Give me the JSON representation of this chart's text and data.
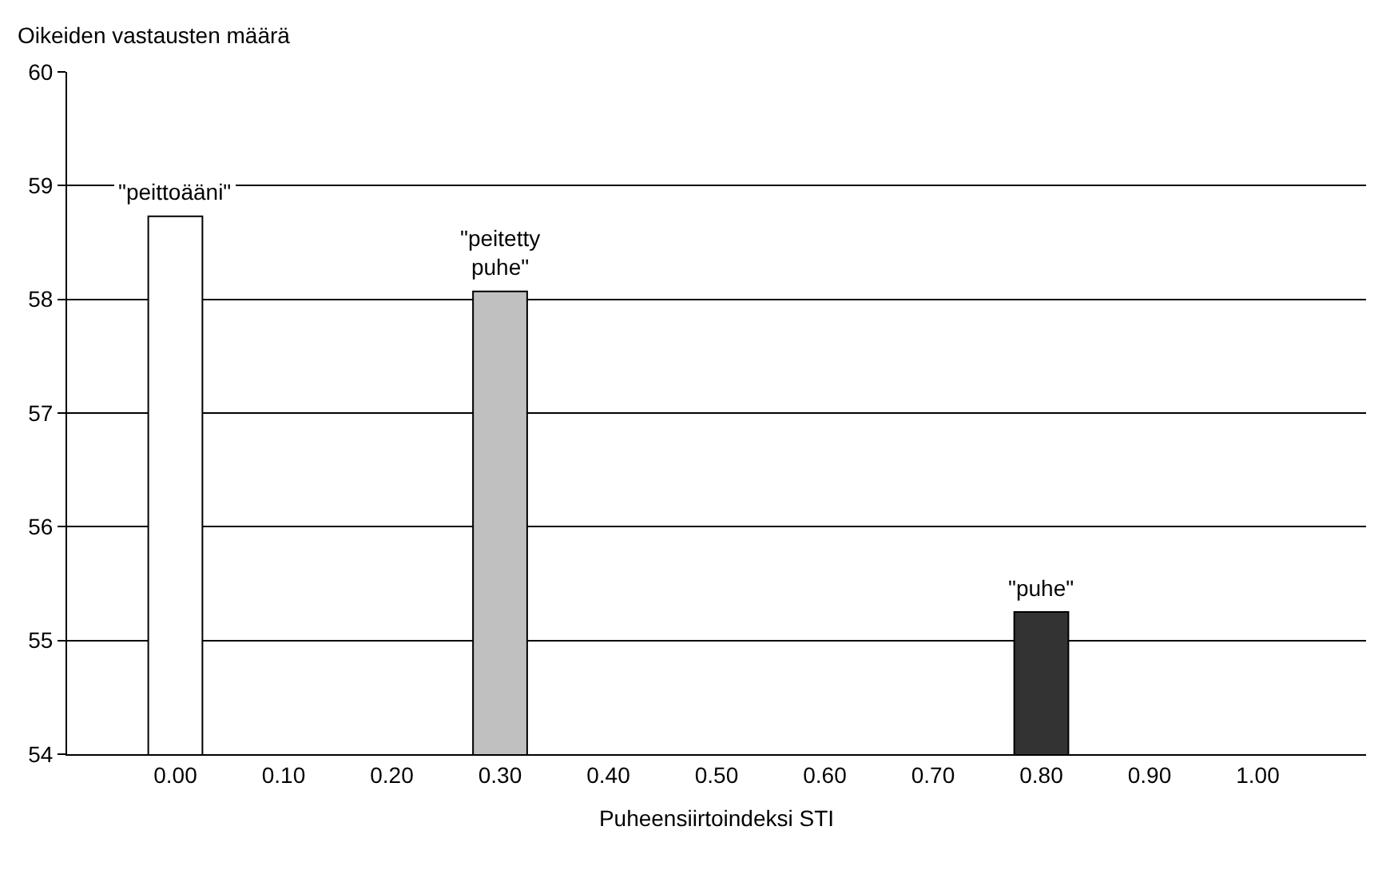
{
  "chart_data": {
    "type": "bar",
    "xlabel": "Puheensiirtoindeksi STI",
    "ylabel": "Oikeiden vastausten määrä",
    "categories": [
      "0.00",
      "0.10",
      "0.20",
      "0.30",
      "0.40",
      "0.50",
      "0.60",
      "0.70",
      "0.80",
      "0.90",
      "1.00"
    ],
    "values": [
      58.73,
      null,
      null,
      58.07,
      null,
      null,
      null,
      null,
      55.25,
      null,
      null
    ],
    "colors": [
      "#ffffff",
      null,
      null,
      "#c0c0c0",
      null,
      null,
      null,
      null,
      "#333333",
      null,
      null
    ],
    "annotations": [
      {
        "text": "\"peittoääni\"",
        "x": "0.00",
        "y": 58.73
      },
      {
        "text": "\"peitetty\npuhe\"",
        "x": "0.30",
        "y": 58.07
      },
      {
        "text": "\"puhe\"",
        "x": "0.80",
        "y": 55.25
      }
    ],
    "ylim": [
      54,
      60
    ],
    "yticks": [
      54,
      55,
      56,
      57,
      58,
      59,
      60
    ],
    "grid": "y",
    "legend": false
  }
}
